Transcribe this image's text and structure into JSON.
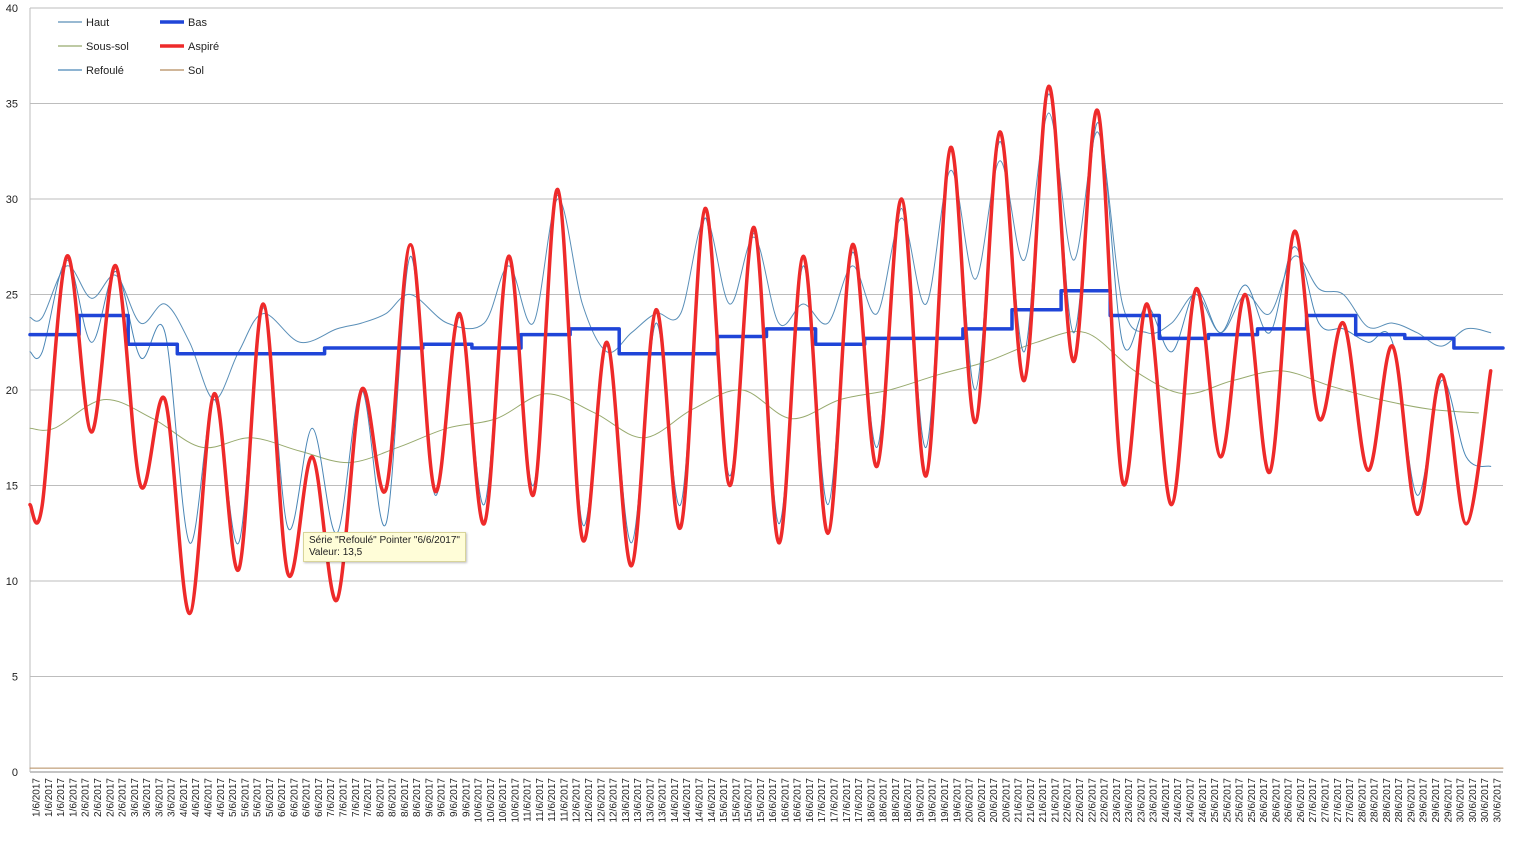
{
  "chart_data": {
    "type": "line",
    "title": "",
    "xlabel": "",
    "ylabel": "",
    "ylim": [
      0,
      40
    ],
    "yticks": [
      0,
      5,
      10,
      15,
      20,
      25,
      30,
      35,
      40
    ],
    "grid": "horizontal",
    "legend_position": "top-left",
    "x_start": "1/6/2017",
    "x_end": "30/6/2017",
    "day_labels": [
      "1/6/2017",
      "2/6/2017",
      "3/6/2017",
      "4/6/2017",
      "5/6/2017",
      "6/6/2017",
      "7/6/2017",
      "8/6/2017",
      "9/6/2017",
      "10/6/2017",
      "11/6/2017",
      "12/6/2017",
      "13/6/2017",
      "14/6/2017",
      "15/6/2017",
      "16/6/2017",
      "17/6/2017",
      "18/6/2017",
      "19/6/2017",
      "20/6/2017",
      "21/6/2017",
      "22/6/2017",
      "23/6/2017",
      "24/6/2017",
      "25/6/2017",
      "26/6/2017",
      "27/6/2017",
      "28/6/2017",
      "29/6/2017",
      "30/6/2017"
    ],
    "labels_per_day": 4,
    "series": [
      {
        "name": "Haut",
        "color": "#5a8fb8",
        "style": "thin",
        "x": [
          "1/6/2017",
          "1/6/2017",
          "2/6/2017",
          "2/6/2017",
          "3/6/2017",
          "3/6/2017",
          "4/6/2017",
          "4/6/2017",
          "5/6/2017",
          "5/6/2017",
          "6/6/2017",
          "7/6/2017",
          "7/6/2017",
          "8/6/2017",
          "8/6/2017",
          "9/6/2017",
          "10/6/2017",
          "10/6/2017",
          "11/6/2017",
          "11/6/2017",
          "12/6/2017",
          "12/6/2017",
          "13/6/2017",
          "13/6/2017",
          "14/6/2017",
          "14/6/2017",
          "15/6/2017",
          "15/6/2017",
          "16/6/2017",
          "16/6/2017",
          "17/6/2017",
          "17/6/2017",
          "18/6/2017",
          "18/6/2017",
          "19/6/2017",
          "19/6/2017",
          "20/6/2017",
          "20/6/2017",
          "21/6/2017",
          "21/6/2017",
          "22/6/2017",
          "22/6/2017",
          "23/6/2017",
          "23/6/2017",
          "24/6/2017",
          "24/6/2017",
          "25/6/2017",
          "25/6/2017",
          "26/6/2017",
          "26/6/2017",
          "27/6/2017",
          "27/6/2017",
          "28/6/2017",
          "28/6/2017",
          "29/6/2017",
          "29/6/2017",
          "30/6/2017",
          "30/6/2017"
        ],
        "values": [
          23.8,
          26.5,
          24.8,
          26,
          23.5,
          24.5,
          22.5,
          19.5,
          22,
          24,
          22.5,
          23.2,
          23.5,
          24,
          25,
          23.5,
          23.5,
          26.5,
          23.5,
          30,
          24.5,
          22,
          23,
          24,
          24,
          29,
          24.5,
          28,
          23.5,
          24.5,
          23.5,
          26.5,
          24,
          29,
          24.5,
          31.5,
          25.8,
          32,
          26.8,
          34.5,
          26.8,
          33.5,
          24.5,
          23,
          23.5,
          25,
          23,
          25,
          24,
          27,
          25.3,
          25,
          23.3,
          23.5,
          23,
          22.3,
          23.2,
          23
        ]
      },
      {
        "name": "Bas",
        "color": "#1f45d8",
        "style": "thick",
        "x": [
          "1/6/2017",
          "2/6/2017",
          "3/6/2017",
          "4/6/2017",
          "5/6/2017",
          "6/6/2017",
          "7/6/2017",
          "8/6/2017",
          "9/6/2017",
          "10/6/2017",
          "11/6/2017",
          "12/6/2017",
          "13/6/2017",
          "14/6/2017",
          "15/6/2017",
          "16/6/2017",
          "17/6/2017",
          "18/6/2017",
          "19/6/2017",
          "20/6/2017",
          "21/6/2017",
          "22/6/2017",
          "23/6/2017",
          "24/6/2017",
          "25/6/2017",
          "26/6/2017",
          "27/6/2017",
          "28/6/2017",
          "29/6/2017",
          "30/6/2017"
        ],
        "values": [
          22.9,
          23.9,
          22.4,
          21.9,
          21.9,
          21.9,
          22.2,
          22.2,
          22.4,
          22.2,
          22.9,
          23.2,
          21.9,
          21.9,
          22.8,
          23.2,
          22.4,
          22.7,
          22.7,
          23.2,
          24.2,
          25.2,
          23.9,
          22.7,
          22.9,
          23.2,
          23.9,
          22.9,
          22.7,
          22.2
        ]
      },
      {
        "name": "Sous-sol",
        "color": "#98aa6e",
        "style": "thin",
        "x": [
          "1/6/2017",
          "2/6/2017",
          "3/6/2017",
          "4/6/2017",
          "5/6/2017",
          "6/6/2017",
          "7/6/2017",
          "8/6/2017",
          "9/6/2017",
          "10/6/2017",
          "11/6/2017",
          "12/6/2017",
          "13/6/2017",
          "14/6/2017",
          "15/6/2017",
          "16/6/2017",
          "17/6/2017",
          "18/6/2017",
          "19/6/2017",
          "20/6/2017",
          "21/6/2017",
          "22/6/2017",
          "23/6/2017",
          "24/6/2017",
          "25/6/2017",
          "26/6/2017",
          "27/6/2017",
          "28/6/2017",
          "29/6/2017",
          "30/6/2017"
        ],
        "values": [
          18,
          19.5,
          18.5,
          17,
          17.5,
          16.8,
          16.2,
          17,
          18,
          18.5,
          19.8,
          18.8,
          17.5,
          19,
          20,
          18.5,
          19.5,
          20,
          20.8,
          21.5,
          22.5,
          23,
          21,
          19.8,
          20.5,
          21,
          20.2,
          19.5,
          19,
          18.8
        ]
      },
      {
        "name": "Aspiré",
        "color": "#ee2a2a",
        "style": "thick",
        "x": [
          "1/6/2017",
          "1/6/2017",
          "2/6/2017",
          "2/6/2017",
          "3/6/2017",
          "3/6/2017",
          "4/6/2017",
          "4/6/2017",
          "5/6/2017",
          "5/6/2017",
          "6/6/2017",
          "6/6/2017",
          "7/6/2017",
          "7/6/2017",
          "8/6/2017",
          "8/6/2017",
          "9/6/2017",
          "9/6/2017",
          "10/6/2017",
          "10/6/2017",
          "11/6/2017",
          "11/6/2017",
          "12/6/2017",
          "12/6/2017",
          "13/6/2017",
          "13/6/2017",
          "14/6/2017",
          "14/6/2017",
          "15/6/2017",
          "15/6/2017",
          "16/6/2017",
          "16/6/2017",
          "17/6/2017",
          "17/6/2017",
          "18/6/2017",
          "18/6/2017",
          "19/6/2017",
          "19/6/2017",
          "20/6/2017",
          "20/6/2017",
          "21/6/2017",
          "21/6/2017",
          "22/6/2017",
          "22/6/2017",
          "23/6/2017",
          "23/6/2017",
          "24/6/2017",
          "24/6/2017",
          "25/6/2017",
          "25/6/2017",
          "26/6/2017",
          "26/6/2017",
          "27/6/2017",
          "27/6/2017",
          "28/6/2017",
          "28/6/2017",
          "29/6/2017",
          "29/6/2017",
          "30/6/2017",
          "30/6/2017"
        ],
        "values": [
          14,
          27,
          17.8,
          26.5,
          15,
          19.5,
          8.3,
          19.8,
          10.6,
          24.5,
          10.4,
          16.5,
          9,
          20,
          14.8,
          27.6,
          14.7,
          24,
          13,
          27,
          14.5,
          30.5,
          12.2,
          22.5,
          10.8,
          24.2,
          12.8,
          29.5,
          15,
          28.5,
          12,
          27,
          12.5,
          27.6,
          16,
          30,
          15.5,
          32.7,
          18.3,
          33.5,
          20.5,
          35.9,
          21.5,
          34.6,
          15.2,
          24.5,
          14,
          25.3,
          16.5,
          25,
          15.7,
          28.3,
          18.5,
          23.5,
          15.8,
          22.3,
          13.5,
          20.8,
          13,
          21
        ]
      },
      {
        "name": "Refoulé",
        "color": "#4a86b6",
        "style": "thin",
        "x": [
          "1/6/2017",
          "1/6/2017",
          "2/6/2017",
          "2/6/2017",
          "3/6/2017",
          "3/6/2017",
          "4/6/2017",
          "4/6/2017",
          "5/6/2017",
          "5/6/2017",
          "6/6/2017",
          "6/6/2017",
          "7/6/2017",
          "7/6/2017",
          "8/6/2017",
          "8/6/2017",
          "9/6/2017",
          "9/6/2017",
          "10/6/2017",
          "10/6/2017",
          "11/6/2017",
          "11/6/2017",
          "12/6/2017",
          "12/6/2017",
          "13/6/2017",
          "13/6/2017",
          "14/6/2017",
          "14/6/2017",
          "15/6/2017",
          "15/6/2017",
          "16/6/2017",
          "16/6/2017",
          "17/6/2017",
          "17/6/2017",
          "18/6/2017",
          "18/6/2017",
          "19/6/2017",
          "19/6/2017",
          "20/6/2017",
          "20/6/2017",
          "21/6/2017",
          "21/6/2017",
          "22/6/2017",
          "22/6/2017",
          "23/6/2017",
          "23/6/2017",
          "24/6/2017",
          "24/6/2017",
          "25/6/2017",
          "25/6/2017",
          "26/6/2017",
          "26/6/2017",
          "27/6/2017",
          "27/6/2017",
          "28/6/2017",
          "28/6/2017",
          "29/6/2017",
          "29/6/2017",
          "30/6/2017",
          "30/6/2017"
        ],
        "values": [
          22,
          26.8,
          22.5,
          26.2,
          21.7,
          23,
          12,
          19.5,
          12,
          24.3,
          12.8,
          18,
          12.5,
          20,
          13,
          27,
          14.5,
          23.8,
          14,
          27,
          15,
          30.2,
          13,
          22.3,
          12,
          23.5,
          14,
          29,
          15.5,
          28.2,
          13,
          26.5,
          14,
          27.2,
          17,
          29.5,
          17,
          32.5,
          20,
          33,
          22,
          35.5,
          23,
          34,
          22.5,
          24.4,
          22,
          25.2,
          23,
          25.5,
          23,
          27.5,
          23.5,
          23.2,
          22.5,
          22.5,
          14.5,
          20.5,
          16.5,
          16
        ]
      },
      {
        "name": "Sol",
        "color": "#b48a5c",
        "style": "thin",
        "x": [
          "1/6/2017",
          "30/6/2017"
        ],
        "values": [
          0.2,
          0.2
        ]
      }
    ],
    "tooltip": {
      "line1": "Série \"Refoulé\" Pointer \"6/6/2017\"",
      "line2": "Valeur: 13,5"
    }
  }
}
